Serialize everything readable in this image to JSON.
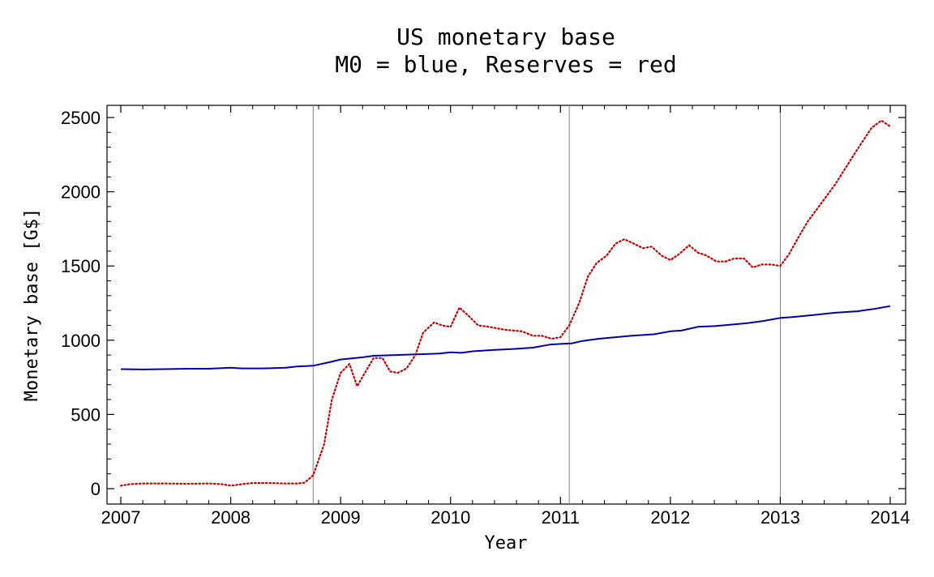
{
  "chart_data": {
    "type": "line",
    "title": "US monetary base",
    "subtitle": "M0 = blue, Reserves = red",
    "xlabel": "Year",
    "ylabel": "Monetary base [G$]",
    "xlim": [
      2007,
      2014
    ],
    "ylim": [
      -100,
      2580
    ],
    "x_ticks": [
      2007,
      2008,
      2009,
      2010,
      2011,
      2012,
      2013,
      2014
    ],
    "y_ticks": [
      0,
      500,
      1000,
      1500,
      2000,
      2500
    ],
    "vertical_markers": [
      2008.75,
      2011.08,
      2013.0
    ],
    "grid": false,
    "series": [
      {
        "color": "#0000aa",
        "style": "solid",
        "x": [
          2007.0,
          2007.2,
          2007.4,
          2007.6,
          2007.8,
          2008.0,
          2008.1,
          2008.3,
          2008.5,
          2008.6,
          2008.75,
          2008.9,
          2009.0,
          2009.2,
          2009.3,
          2009.5,
          2009.7,
          2009.9,
          2010.0,
          2010.1,
          2010.2,
          2010.4,
          2010.6,
          2010.75,
          2010.9,
          2011.0,
          2011.1,
          2011.2,
          2011.35,
          2011.5,
          2011.65,
          2011.85,
          2012.0,
          2012.1,
          2012.25,
          2012.4,
          2012.55,
          2012.7,
          2012.85,
          2013.0,
          2013.1,
          2013.3,
          2013.5,
          2013.7,
          2013.85,
          2014.0
        ],
        "y": [
          805,
          803,
          805,
          808,
          808,
          815,
          810,
          810,
          815,
          823,
          828,
          852,
          870,
          885,
          895,
          900,
          905,
          910,
          918,
          915,
          925,
          935,
          942,
          950,
          970,
          975,
          978,
          995,
          1010,
          1020,
          1030,
          1040,
          1060,
          1065,
          1090,
          1095,
          1105,
          1115,
          1130,
          1150,
          1155,
          1170,
          1185,
          1195,
          1210,
          1230
        ]
      },
      {
        "color": "#cc0000",
        "style": "dotted",
        "x": [
          2007.0,
          2007.08,
          2007.2,
          2007.4,
          2007.6,
          2007.8,
          2007.92,
          2008.0,
          2008.1,
          2008.2,
          2008.35,
          2008.5,
          2008.6,
          2008.67,
          2008.75,
          2008.85,
          2008.92,
          2009.0,
          2009.08,
          2009.15,
          2009.22,
          2009.3,
          2009.38,
          2009.45,
          2009.52,
          2009.6,
          2009.68,
          2009.75,
          2009.85,
          2009.92,
          2010.0,
          2010.08,
          2010.17,
          2010.25,
          2010.35,
          2010.5,
          2010.65,
          2010.75,
          2010.83,
          2010.92,
          2011.0,
          2011.08,
          2011.17,
          2011.25,
          2011.33,
          2011.42,
          2011.5,
          2011.58,
          2011.67,
          2011.75,
          2011.83,
          2011.92,
          2012.0,
          2012.08,
          2012.17,
          2012.25,
          2012.33,
          2012.42,
          2012.5,
          2012.58,
          2012.67,
          2012.75,
          2012.83,
          2012.92,
          2013.0,
          2013.08,
          2013.17,
          2013.25,
          2013.33,
          2013.5,
          2013.67,
          2013.83,
          2013.92,
          2014.0
        ],
        "y": [
          20,
          30,
          35,
          35,
          33,
          35,
          30,
          20,
          30,
          38,
          38,
          35,
          35,
          40,
          90,
          300,
          600,
          780,
          840,
          690,
          780,
          880,
          880,
          790,
          780,
          810,
          900,
          1050,
          1120,
          1100,
          1090,
          1220,
          1160,
          1100,
          1090,
          1070,
          1060,
          1030,
          1030,
          1010,
          1020,
          1100,
          1250,
          1430,
          1520,
          1570,
          1650,
          1680,
          1650,
          1620,
          1630,
          1570,
          1540,
          1580,
          1640,
          1590,
          1570,
          1530,
          1530,
          1550,
          1550,
          1490,
          1510,
          1510,
          1500,
          1580,
          1700,
          1800,
          1880,
          2050,
          2250,
          2430,
          2480,
          2440
        ]
      }
    ]
  }
}
